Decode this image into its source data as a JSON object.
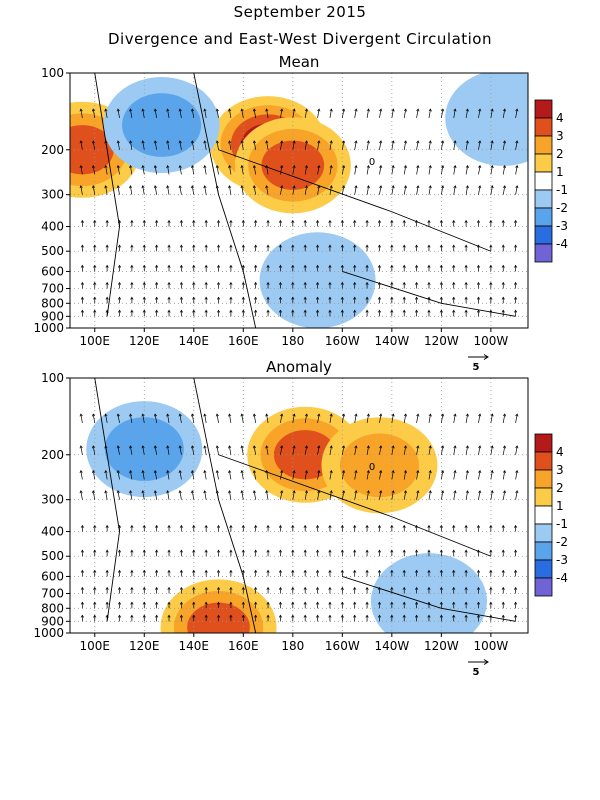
{
  "titles": {
    "line1": "September 2015",
    "line2": "Divergence and East-West Divergent Circulation"
  },
  "chart_data": [
    {
      "type": "heatmap",
      "title": "Mean",
      "xlabel": "",
      "ylabel": "",
      "x_ticks": [
        "100E",
        "120E",
        "140E",
        "160E",
        "180",
        "160W",
        "140W",
        "120W",
        "100W"
      ],
      "y_ticks": [
        "100",
        "200",
        "300",
        "400",
        "500",
        "600",
        "700",
        "800",
        "900",
        "1000"
      ],
      "colorbar_labels": [
        "4",
        "3",
        "2",
        "1",
        "-1",
        "-2",
        "-3",
        "-4"
      ],
      "colors": [
        "#b51a1a",
        "#e0501c",
        "#f7a428",
        "#fccc48",
        "#ffffff",
        "#9ccaf2",
        "#5aa4ec",
        "#2a6de0",
        "#6f63d6"
      ],
      "contour_label": "0",
      "reference_vector_label": "5",
      "features": [
        {
          "kind": "divergence",
          "lon": 170,
          "p": 190,
          "value": 4
        },
        {
          "kind": "divergence",
          "lon": 180,
          "p": 230,
          "value": 3
        },
        {
          "kind": "divergence",
          "lon": 95,
          "p": 200,
          "value": 3
        },
        {
          "kind": "convergence",
          "lon": 127,
          "p": 160,
          "value": -2
        },
        {
          "kind": "convergence",
          "lon": 265,
          "p": 150,
          "value": -1
        },
        {
          "kind": "convergence",
          "lon": 190,
          "p": 650,
          "value": -1
        }
      ]
    },
    {
      "type": "heatmap",
      "title": "Anomaly",
      "xlabel": "",
      "ylabel": "",
      "x_ticks": [
        "100E",
        "120E",
        "140E",
        "160E",
        "180",
        "160W",
        "140W",
        "120W",
        "100W"
      ],
      "y_ticks": [
        "100",
        "200",
        "300",
        "400",
        "500",
        "600",
        "700",
        "800",
        "900",
        "1000"
      ],
      "colorbar_labels": [
        "4",
        "3",
        "2",
        "1",
        "-1",
        "-2",
        "-3",
        "-4"
      ],
      "colors": [
        "#b51a1a",
        "#e0501c",
        "#f7a428",
        "#fccc48",
        "#ffffff",
        "#9ccaf2",
        "#5aa4ec",
        "#2a6de0",
        "#6f63d6"
      ],
      "contour_label": "0",
      "reference_vector_label": "5",
      "features": [
        {
          "kind": "divergence",
          "lon": 185,
          "p": 200,
          "value": 3
        },
        {
          "kind": "divergence",
          "lon": 215,
          "p": 220,
          "value": 2
        },
        {
          "kind": "convergence",
          "lon": 120,
          "p": 190,
          "value": -2
        },
        {
          "kind": "convergence",
          "lon": 235,
          "p": 750,
          "value": -1
        },
        {
          "kind": "divergence",
          "lon": 150,
          "p": 950,
          "value": 3
        }
      ]
    }
  ]
}
